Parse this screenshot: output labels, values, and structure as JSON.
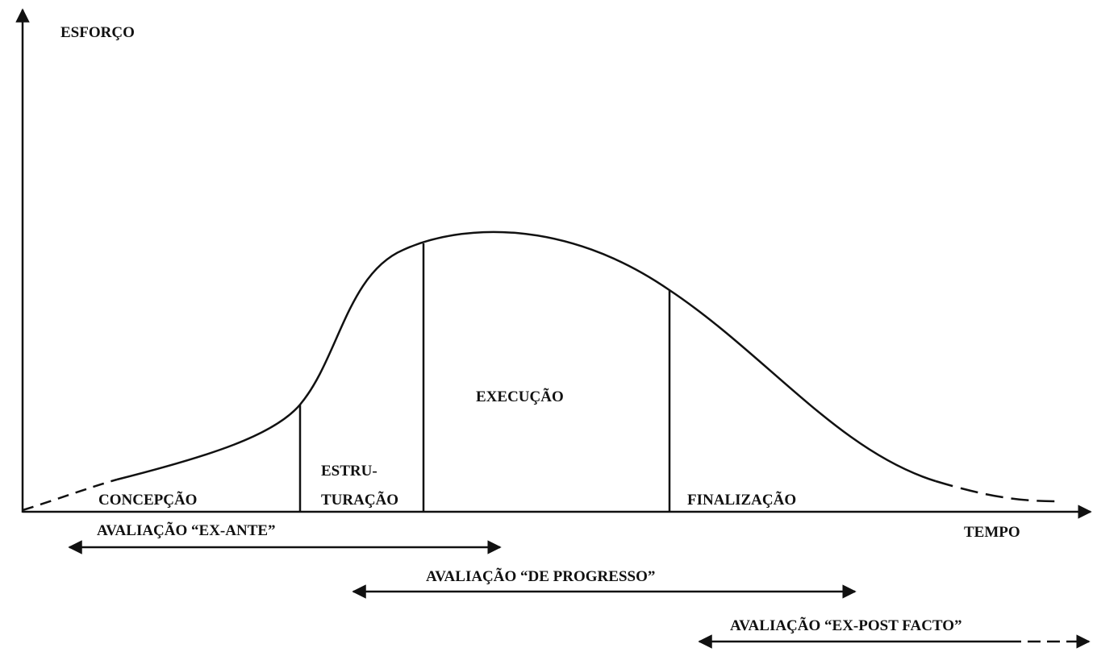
{
  "axes": {
    "y_label": "ESFORÇO",
    "x_label": "TEMPO"
  },
  "phases": [
    {
      "label": "CONCEPÇÃO"
    },
    {
      "label_lines": [
        "ESTRU-",
        "TURAÇÃO"
      ]
    },
    {
      "label": "EXECUÇÃO"
    },
    {
      "label": "FINALIZAÇÃO"
    }
  ],
  "evaluations": [
    {
      "label": "AVALIAÇÃO “EX-ANTE”"
    },
    {
      "label": "AVALIAÇÃO “DE PROGRESSO”"
    },
    {
      "label": "AVALIAÇÃO “EX-POST FACTO”"
    }
  ]
}
